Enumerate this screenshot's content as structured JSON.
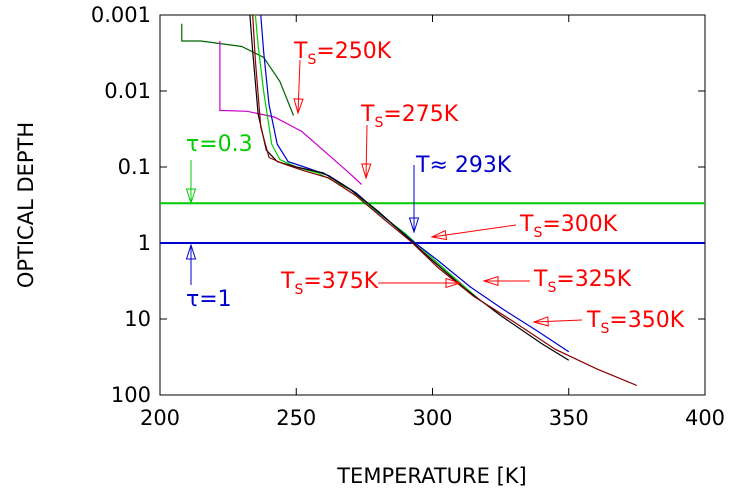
{
  "chart_data": {
    "type": "line",
    "xlabel": "TEMPERATURE [K]",
    "ylabel": "OPTICAL DEPTH",
    "xlim": [
      200,
      400
    ],
    "ylim": [
      0.001,
      100
    ],
    "y_scale": "log",
    "y_axis_inverted": true,
    "grid": false,
    "x_ticks": [
      "200",
      "250",
      "300",
      "350",
      "400"
    ],
    "y_ticks": [
      {
        "value": 0.001,
        "label": "0.001"
      },
      {
        "value": 0.01,
        "label": "0.01"
      },
      {
        "value": 0.1,
        "label": "0.1"
      },
      {
        "value": 1,
        "label": "1"
      },
      {
        "value": 10,
        "label": "10"
      },
      {
        "value": 100,
        "label": "100"
      }
    ],
    "series": [
      {
        "name": "T_S=250K",
        "color": "#006400",
        "points": [
          [
            208,
            0.0013
          ],
          [
            208,
            0.0022
          ],
          [
            215,
            0.0022
          ],
          [
            230,
            0.0026
          ],
          [
            238,
            0.0036
          ],
          [
            244,
            0.0075
          ],
          [
            249,
            0.021
          ]
        ]
      },
      {
        "name": "T_S=275K",
        "color": "#cc00cc",
        "points": [
          [
            222,
            0.0022
          ],
          [
            222,
            0.018
          ],
          [
            232,
            0.0185
          ],
          [
            242,
            0.022
          ],
          [
            252,
            0.034
          ],
          [
            262,
            0.07
          ],
          [
            270,
            0.125
          ],
          [
            274,
            0.17
          ]
        ]
      },
      {
        "name": "T_S=300K",
        "color": "#00cc00",
        "points": [
          [
            235,
            0.001
          ],
          [
            236,
            0.0025
          ],
          [
            238,
            0.01
          ],
          [
            241,
            0.05
          ],
          [
            244,
            0.08
          ],
          [
            250,
            0.1
          ],
          [
            258,
            0.12
          ],
          [
            270,
            0.2
          ],
          [
            280,
            0.4
          ],
          [
            290,
            0.75
          ],
          [
            300,
            1.6
          ],
          [
            310,
            3.3
          ],
          [
            317,
            5.5
          ]
        ]
      },
      {
        "name": "T_S=325K",
        "color": "#0000cc",
        "points": [
          [
            237,
            0.001
          ],
          [
            238,
            0.003
          ],
          [
            240,
            0.015
          ],
          [
            243,
            0.05
          ],
          [
            247,
            0.085
          ],
          [
            253,
            0.1
          ],
          [
            262,
            0.13
          ],
          [
            272,
            0.22
          ],
          [
            282,
            0.45
          ],
          [
            292,
            0.9
          ],
          [
            302,
            1.7
          ],
          [
            314,
            3.8
          ],
          [
            326,
            7.5
          ],
          [
            338,
            14
          ],
          [
            350,
            27
          ]
        ]
      },
      {
        "name": "T_S=350K",
        "color": "#000000",
        "points": [
          [
            233,
            0.001
          ],
          [
            234,
            0.003
          ],
          [
            236,
            0.02
          ],
          [
            239,
            0.06
          ],
          [
            243,
            0.085
          ],
          [
            250,
            0.1
          ],
          [
            260,
            0.12
          ],
          [
            270,
            0.2
          ],
          [
            280,
            0.38
          ],
          [
            290,
            0.8
          ],
          [
            300,
            1.7
          ],
          [
            312,
            4
          ],
          [
            325,
            9
          ],
          [
            340,
            21
          ],
          [
            350,
            35
          ]
        ]
      },
      {
        "name": "T_S=375K",
        "color": "#8b0000",
        "points": [
          [
            234,
            0.001
          ],
          [
            235,
            0.004
          ],
          [
            237,
            0.03
          ],
          [
            240,
            0.075
          ],
          [
            245,
            0.09
          ],
          [
            252,
            0.11
          ],
          [
            262,
            0.14
          ],
          [
            272,
            0.24
          ],
          [
            282,
            0.48
          ],
          [
            292,
            0.95
          ],
          [
            302,
            2.1
          ],
          [
            315,
            5
          ],
          [
            330,
            11
          ],
          [
            345,
            25
          ],
          [
            360,
            45
          ],
          [
            375,
            75
          ]
        ]
      }
    ],
    "hlines": [
      {
        "label": "τ=0.3",
        "value": 0.3,
        "color": "#00cc00"
      },
      {
        "label": "τ=1",
        "value": 1,
        "color": "#0000cc"
      }
    ],
    "annotations": [
      {
        "main": "T",
        "sub": "S",
        "rest": "=250K",
        "color": "#ff0000"
      },
      {
        "main": "T",
        "sub": "S",
        "rest": "=275K",
        "color": "#ff0000"
      },
      {
        "main": "T",
        "sub": "",
        "rest": "≈ 293K",
        "color": "#0000cc"
      },
      {
        "main": "T",
        "sub": "S",
        "rest": "=300K",
        "color": "#ff0000"
      },
      {
        "main": "T",
        "sub": "S",
        "rest": "=325K",
        "color": "#ff0000"
      },
      {
        "main": "T",
        "sub": "S",
        "rest": "=375K",
        "color": "#ff0000"
      },
      {
        "main": "T",
        "sub": "S",
        "rest": "=350K",
        "color": "#ff0000"
      }
    ]
  }
}
